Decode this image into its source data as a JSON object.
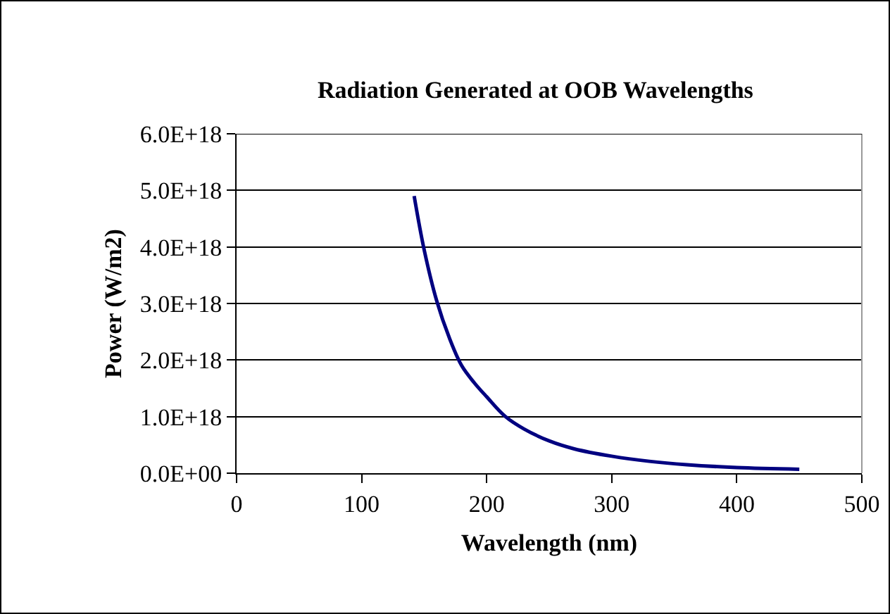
{
  "chart_data": {
    "type": "line",
    "title": "Radiation Generated at OOB Wavelengths",
    "xlabel": "Wavelength (nm)",
    "ylabel": "Power (W/m2)",
    "x": [
      142,
      150,
      160,
      170,
      180,
      190,
      200,
      215,
      230,
      250,
      270,
      300,
      330,
      360,
      400,
      450
    ],
    "series": [
      {
        "color": "#000080",
        "values": [
          4.9e+18,
          3.95e+18,
          3.05e+18,
          2.4e+18,
          1.9e+18,
          1.6e+18,
          1.35e+18,
          1e+18,
          7.8e+17,
          5.7e+17,
          4.3e+17,
          3e+17,
          2.1e+17,
          1.5e+17,
          1e+17,
          7e+16
        ]
      }
    ],
    "xlim": [
      0,
      500
    ],
    "xticks": [
      0,
      100,
      200,
      300,
      400,
      500
    ],
    "ylim": [
      0,
      6e+18
    ],
    "yticks": [
      {
        "value": 0,
        "label": "0.0E+00"
      },
      {
        "value": 1e+18,
        "label": "1.0E+18"
      },
      {
        "value": 2e+18,
        "label": "2.0E+18"
      },
      {
        "value": 3e+18,
        "label": "3.0E+18"
      },
      {
        "value": 4e+18,
        "label": "4.0E+18"
      },
      {
        "value": 5e+18,
        "label": "5.0E+18"
      },
      {
        "value": 6e+18,
        "label": "6.0E+18"
      }
    ],
    "grid": "y",
    "marker": "none",
    "line_style": "solid"
  }
}
